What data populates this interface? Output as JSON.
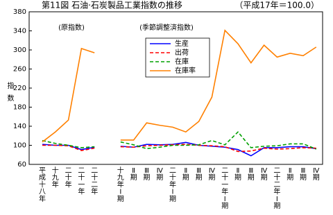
{
  "chart_data": {
    "type": "line",
    "title": "第11図 石油·石炭製品工業指数の推移",
    "subtitle": "（平成17年＝100.0）",
    "y_label": "指数",
    "annotations": [
      "(原指数)",
      "(季節調整済指数)"
    ],
    "categories": [
      "平成十八年",
      "十九年",
      "二十年",
      "二十一年",
      "二十二年",
      null,
      "十九年Ⅰ期",
      "Ⅱ期",
      "Ⅲ期",
      "Ⅳ期",
      "二十年Ⅰ期",
      "Ⅱ期",
      "Ⅲ期",
      "Ⅳ期",
      "二十一年Ⅰ期",
      "Ⅱ期",
      "Ⅲ期",
      "Ⅳ期",
      "二十二年Ⅰ期",
      "Ⅱ期",
      "Ⅲ期",
      "Ⅳ期"
    ],
    "series": [
      {
        "name": "生産",
        "color": "#0000ff",
        "dash": false,
        "values": [
          102,
          100,
          100,
          91,
          96,
          null,
          98,
          96,
          102,
          101,
          102,
          106,
          100,
          98,
          96,
          91,
          78,
          95,
          95,
          97,
          97,
          93
        ]
      },
      {
        "name": "出荷",
        "color": "#ff0000",
        "dash": true,
        "values": [
          100,
          100,
          99,
          89,
          94,
          null,
          97,
          96,
          99,
          100,
          101,
          102,
          100,
          99,
          97,
          87,
          88,
          94,
          92,
          93,
          95,
          94
        ]
      },
      {
        "name": "在庫",
        "color": "#00a000",
        "dash": true,
        "values": [
          110,
          104,
          100,
          95,
          97,
          null,
          107,
          101,
          93,
          96,
          100,
          100,
          101,
          110,
          101,
          128,
          95,
          98,
          99,
          103,
          103,
          92
        ]
      },
      {
        "name": "在庫率",
        "color": "#ff8000",
        "dash": false,
        "values": [
          107,
          128,
          153,
          303,
          294,
          null,
          111,
          111,
          147,
          142,
          138,
          128,
          150,
          201,
          341,
          313,
          273,
          310,
          285,
          293,
          288,
          306
        ]
      }
    ],
    "ylim": [
      60,
      380
    ],
    "yticks": [
      60,
      100,
      140,
      180,
      220,
      260,
      300,
      340,
      380
    ]
  }
}
